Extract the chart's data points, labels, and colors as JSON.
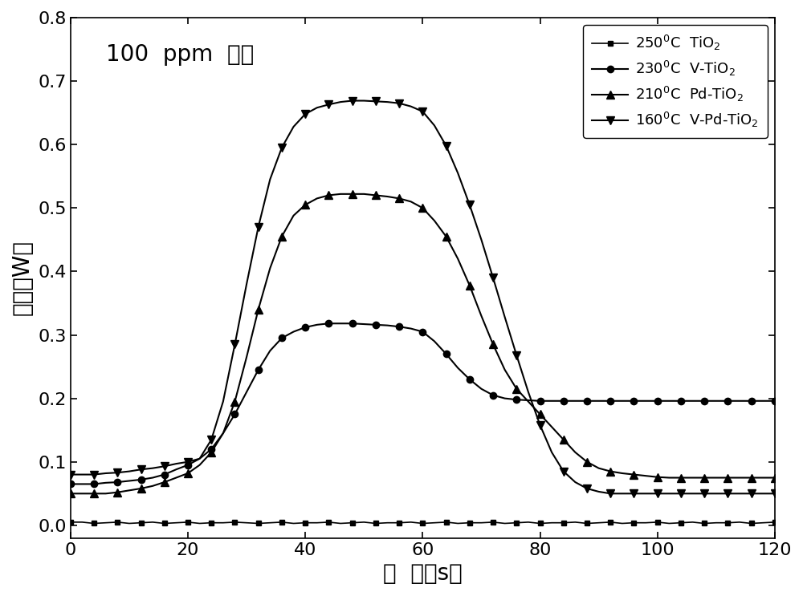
{
  "title_annotation": "100  ppm  氯苯",
  "xlabel": "时  间（s）",
  "ylabel": "功率（W）",
  "xlim": [
    0,
    120
  ],
  "ylim": [
    -0.02,
    0.8
  ],
  "yticks": [
    0.0,
    0.1,
    0.2,
    0.3,
    0.4,
    0.5,
    0.6,
    0.7,
    0.8
  ],
  "xticks": [
    0,
    20,
    40,
    60,
    80,
    100,
    120
  ],
  "bg_color": "#ffffff",
  "series": [
    {
      "label": "250$^0$C  TiO$_2$",
      "marker": "s",
      "markersize": 5,
      "linewidth": 1.2,
      "markevery": 2,
      "data_x": [
        0,
        2,
        4,
        6,
        8,
        10,
        12,
        14,
        16,
        18,
        20,
        22,
        24,
        26,
        28,
        30,
        32,
        34,
        36,
        38,
        40,
        42,
        44,
        46,
        48,
        50,
        52,
        54,
        56,
        58,
        60,
        62,
        64,
        66,
        68,
        70,
        72,
        74,
        76,
        78,
        80,
        82,
        84,
        86,
        88,
        90,
        92,
        94,
        96,
        98,
        100,
        102,
        104,
        106,
        108,
        110,
        112,
        114,
        116,
        118,
        120
      ],
      "data_y": [
        0.005,
        0.005,
        0.003,
        0.004,
        0.005,
        0.003,
        0.004,
        0.005,
        0.003,
        0.004,
        0.005,
        0.003,
        0.004,
        0.004,
        0.005,
        0.004,
        0.003,
        0.004,
        0.005,
        0.003,
        0.004,
        0.004,
        0.005,
        0.003,
        0.004,
        0.005,
        0.003,
        0.004,
        0.004,
        0.005,
        0.003,
        0.004,
        0.005,
        0.003,
        0.004,
        0.004,
        0.005,
        0.003,
        0.004,
        0.005,
        0.003,
        0.004,
        0.004,
        0.005,
        0.003,
        0.004,
        0.005,
        0.003,
        0.004,
        0.004,
        0.005,
        0.003,
        0.004,
        0.005,
        0.003,
        0.004,
        0.004,
        0.005,
        0.003,
        0.004,
        0.005
      ]
    },
    {
      "label": "230$^0$C  V-TiO$_2$",
      "marker": "o",
      "markersize": 6,
      "linewidth": 1.5,
      "markevery": 2,
      "data_x": [
        0,
        2,
        4,
        6,
        8,
        10,
        12,
        14,
        16,
        18,
        20,
        22,
        24,
        26,
        28,
        30,
        32,
        34,
        36,
        38,
        40,
        42,
        44,
        46,
        48,
        50,
        52,
        54,
        56,
        58,
        60,
        62,
        64,
        66,
        68,
        70,
        72,
        74,
        76,
        78,
        80,
        82,
        84,
        86,
        88,
        90,
        92,
        94,
        96,
        98,
        100,
        102,
        104,
        106,
        108,
        110,
        112,
        114,
        116,
        118,
        120
      ],
      "data_y": [
        0.065,
        0.065,
        0.065,
        0.067,
        0.068,
        0.07,
        0.072,
        0.075,
        0.08,
        0.088,
        0.095,
        0.105,
        0.12,
        0.145,
        0.175,
        0.21,
        0.245,
        0.275,
        0.295,
        0.305,
        0.312,
        0.316,
        0.318,
        0.318,
        0.318,
        0.317,
        0.316,
        0.315,
        0.313,
        0.31,
        0.305,
        0.29,
        0.27,
        0.248,
        0.23,
        0.215,
        0.205,
        0.2,
        0.198,
        0.197,
        0.196,
        0.196,
        0.196,
        0.196,
        0.196,
        0.196,
        0.196,
        0.196,
        0.196,
        0.196,
        0.196,
        0.196,
        0.196,
        0.196,
        0.196,
        0.196,
        0.196,
        0.196,
        0.196,
        0.196,
        0.196
      ]
    },
    {
      "label": "210$^0$C  Pd-TiO$_2$",
      "marker": "^",
      "markersize": 7,
      "linewidth": 1.5,
      "markevery": 2,
      "data_x": [
        0,
        2,
        4,
        6,
        8,
        10,
        12,
        14,
        16,
        18,
        20,
        22,
        24,
        26,
        28,
        30,
        32,
        34,
        36,
        38,
        40,
        42,
        44,
        46,
        48,
        50,
        52,
        54,
        56,
        58,
        60,
        62,
        64,
        66,
        68,
        70,
        72,
        74,
        76,
        78,
        80,
        82,
        84,
        86,
        88,
        90,
        92,
        94,
        96,
        98,
        100,
        102,
        104,
        106,
        108,
        110,
        112,
        114,
        116,
        118,
        120
      ],
      "data_y": [
        0.05,
        0.05,
        0.05,
        0.05,
        0.052,
        0.055,
        0.058,
        0.062,
        0.068,
        0.075,
        0.082,
        0.095,
        0.115,
        0.145,
        0.195,
        0.265,
        0.34,
        0.405,
        0.455,
        0.488,
        0.505,
        0.515,
        0.52,
        0.522,
        0.522,
        0.522,
        0.52,
        0.518,
        0.515,
        0.51,
        0.5,
        0.48,
        0.455,
        0.42,
        0.378,
        0.33,
        0.285,
        0.245,
        0.215,
        0.195,
        0.175,
        0.155,
        0.135,
        0.115,
        0.1,
        0.09,
        0.085,
        0.082,
        0.08,
        0.078,
        0.076,
        0.075,
        0.075,
        0.075,
        0.075,
        0.075,
        0.075,
        0.075,
        0.075,
        0.075,
        0.075
      ]
    },
    {
      "label": "160$^0$C  V-Pd-TiO$_2$",
      "marker": "v",
      "markersize": 7,
      "linewidth": 1.5,
      "markevery": 2,
      "data_x": [
        0,
        2,
        4,
        6,
        8,
        10,
        12,
        14,
        16,
        18,
        20,
        22,
        24,
        26,
        28,
        30,
        32,
        34,
        36,
        38,
        40,
        42,
        44,
        46,
        48,
        50,
        52,
        54,
        56,
        58,
        60,
        62,
        64,
        66,
        68,
        70,
        72,
        74,
        76,
        78,
        80,
        82,
        84,
        86,
        88,
        90,
        92,
        94,
        96,
        98,
        100,
        102,
        104,
        106,
        108,
        110,
        112,
        114,
        116,
        118,
        120
      ],
      "data_y": [
        0.08,
        0.08,
        0.08,
        0.082,
        0.083,
        0.085,
        0.088,
        0.09,
        0.093,
        0.097,
        0.1,
        0.105,
        0.135,
        0.195,
        0.285,
        0.38,
        0.47,
        0.545,
        0.595,
        0.628,
        0.648,
        0.658,
        0.663,
        0.667,
        0.669,
        0.669,
        0.668,
        0.667,
        0.665,
        0.66,
        0.652,
        0.63,
        0.598,
        0.555,
        0.505,
        0.45,
        0.39,
        0.328,
        0.268,
        0.21,
        0.158,
        0.115,
        0.085,
        0.068,
        0.058,
        0.053,
        0.05,
        0.05,
        0.05,
        0.05,
        0.05,
        0.05,
        0.05,
        0.05,
        0.05,
        0.05,
        0.05,
        0.05,
        0.05,
        0.05,
        0.05
      ]
    }
  ],
  "axis_label_fontsize": 20,
  "tick_fontsize": 16,
  "legend_fontsize": 13,
  "annotation_fontsize": 20
}
